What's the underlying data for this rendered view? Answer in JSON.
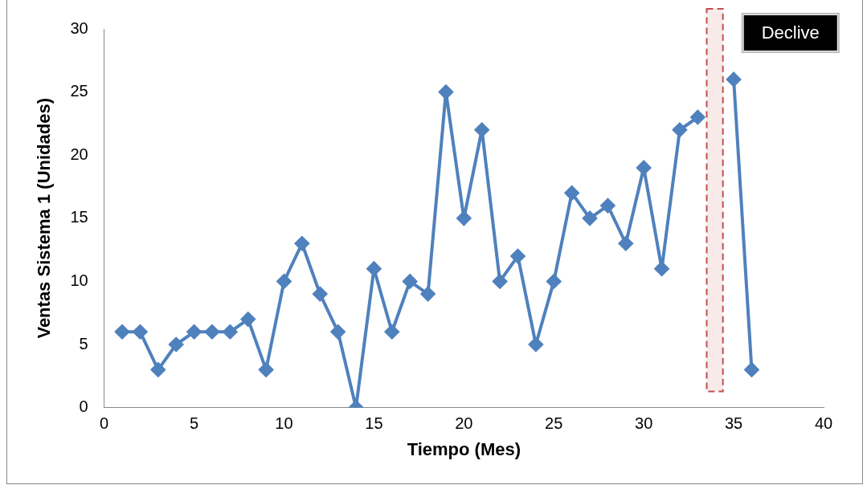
{
  "chart_data": {
    "type": "line",
    "xlabel": "Tiempo (Mes)",
    "ylabel": "Ventas Sistema 1 (Unidades)",
    "x": [
      1,
      2,
      3,
      4,
      5,
      6,
      7,
      8,
      9,
      10,
      11,
      12,
      13,
      14,
      15,
      16,
      17,
      18,
      19,
      20,
      21,
      22,
      23,
      24,
      25,
      26,
      27,
      28,
      29,
      30,
      31,
      32,
      33,
      34,
      35,
      36
    ],
    "series": [
      {
        "color": "#4f81bd",
        "values": [
          6,
          6,
          3,
          5,
          6,
          6,
          6,
          7,
          3,
          10,
          13,
          9,
          6,
          0,
          11,
          6,
          10,
          9,
          25,
          15,
          22,
          10,
          12,
          5,
          10,
          17,
          15,
          16,
          13,
          19,
          11,
          22,
          23,
          null,
          26,
          3
        ]
      }
    ],
    "xlim": [
      0,
      40
    ],
    "xticks": [
      0,
      5,
      10,
      15,
      20,
      25,
      30,
      35,
      40
    ],
    "ylim": [
      0,
      30
    ],
    "yticks": [
      0,
      5,
      10,
      15,
      20,
      25,
      30
    ],
    "bands": [
      {
        "axis": "x",
        "from": 33.5,
        "to": 34.4,
        "label": "Declive",
        "color": "#c0504d"
      }
    ],
    "grid": false,
    "legend": false,
    "marker": "diamond",
    "line_style": "solid"
  }
}
